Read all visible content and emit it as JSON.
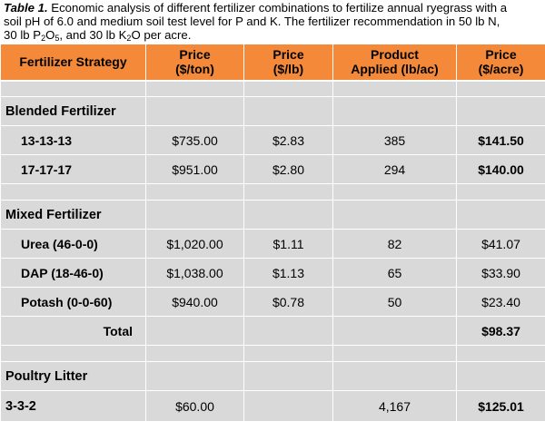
{
  "caption": {
    "lead": "Table 1.",
    "line1_rest": " Economic analysis of different fertilizer combinations to fertilize annual ryegrass with a",
    "line2": "soil pH of 6.0 and medium soil test level for P and K.  The fertilizer recommendation in 50 lb N,",
    "line3_a": "30 lb P",
    "line3_sub1": "2",
    "line3_b": "O",
    "line3_sub2": "5",
    "line3_c": ", and 30 lb K",
    "line3_sub3": "2",
    "line3_d": "O per acre."
  },
  "table": {
    "headers": {
      "strategy": "Fertilizer Strategy",
      "price_ton_1": "Price",
      "price_ton_2": "($/ton)",
      "price_lb_1": "Price",
      "price_lb_2": "($/lb)",
      "applied_1": "Product",
      "applied_2": "Applied (lb/ac)",
      "price_acre_1": "Price",
      "price_acre_2": "($/acre)"
    },
    "blended": {
      "title": "Blended Fertilizer",
      "rows": [
        {
          "name": "13-13-13",
          "price_ton": "$735.00",
          "price_lb": "$2.83",
          "applied": "385",
          "price_acre": "$141.50"
        },
        {
          "name": "17-17-17",
          "price_ton": "$951.00",
          "price_lb": "$2.80",
          "applied": "294",
          "price_acre": "$140.00"
        }
      ]
    },
    "mixed": {
      "title": "Mixed Fertilizer",
      "rows": [
        {
          "name": "Urea (46-0-0)",
          "price_ton": "$1,020.00",
          "price_lb": "$1.11",
          "applied": "82",
          "price_acre": "$41.07"
        },
        {
          "name": "DAP (18-46-0)",
          "price_ton": "$1,038.00",
          "price_lb": "$1.13",
          "applied": "65",
          "price_acre": "$33.90"
        },
        {
          "name": "Potash (0-0-60)",
          "price_ton": "$940.00",
          "price_lb": "$0.78",
          "applied": "50",
          "price_acre": "$23.40"
        }
      ],
      "total_label": "Total",
      "total_value": "$98.37"
    },
    "poultry": {
      "title": "Poultry Litter",
      "rows": [
        {
          "name": "3-3-2",
          "price_ton": "$60.00",
          "price_lb": "",
          "applied": "4,167",
          "price_acre": "$125.01"
        }
      ]
    }
  },
  "colors": {
    "header_bg": "#f4893a",
    "cell_bg": "#d9d9d9"
  }
}
